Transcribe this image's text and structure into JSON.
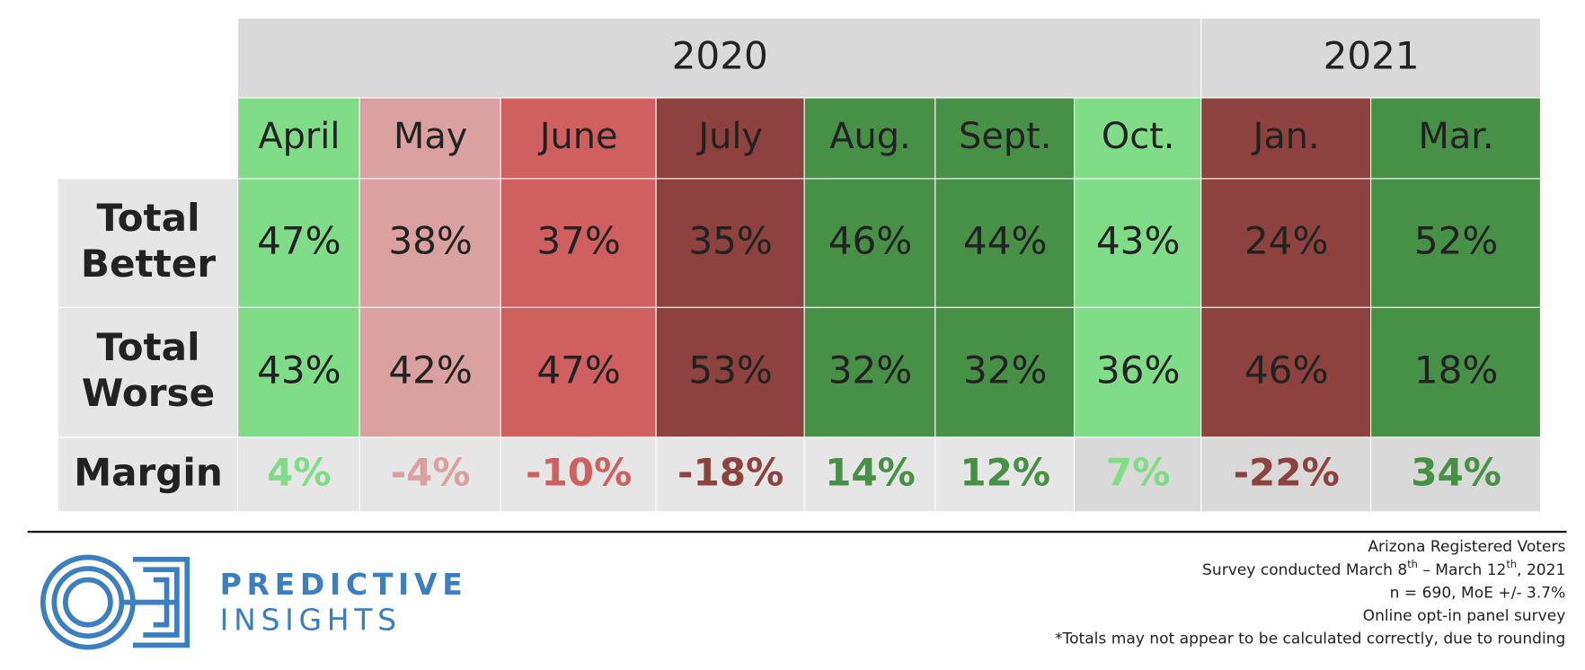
{
  "table": {
    "years": [
      {
        "year": "2020",
        "columns": [
          {
            "month": "April",
            "better": "47%",
            "worse": "43%",
            "margin": "4%",
            "color": "#80dc86"
          },
          {
            "month": "May",
            "better": "38%",
            "worse": "42%",
            "margin": "-4%",
            "color": "#dba0a0"
          },
          {
            "month": "June",
            "better": "37%",
            "worse": "47%",
            "margin": "-10%",
            "color": "#d06060"
          },
          {
            "month": "July",
            "better": "35%",
            "worse": "53%",
            "margin": "-18%",
            "color": "#8e4240"
          },
          {
            "month": "Aug.",
            "better": "46%",
            "worse": "32%",
            "margin": "14%",
            "color": "#469146"
          },
          {
            "month": "Sept.",
            "better": "44%",
            "worse": "32%",
            "margin": "12%",
            "color": "#469146"
          },
          {
            "month": "Oct.",
            "better": "43%",
            "worse": "36%",
            "margin": "7%",
            "color": "#80dc86"
          }
        ]
      },
      {
        "year": "2021",
        "columns": [
          {
            "month": "Jan.",
            "better": "24%",
            "worse": "46%",
            "margin": "-22%",
            "color": "#8e4240"
          },
          {
            "month": "Mar.",
            "better": "52%",
            "worse": "18%",
            "margin": "34%",
            "color": "#469146"
          }
        ]
      }
    ],
    "row_labels": {
      "better": [
        "Total",
        "Better"
      ],
      "worse": [
        "Total",
        "Worse"
      ],
      "margin": [
        "Margin"
      ]
    }
  },
  "footer": {
    "logo": {
      "line1": "PREDICTIVE",
      "line2": "INSIGHTS"
    },
    "notes": [
      [
        "Arizona Registered Voters"
      ],
      [
        "Survey conducted March 8",
        "th",
        " – March 12",
        "th",
        ", 2021"
      ],
      [
        "n = 690, MoE +/- 3.7%"
      ],
      [
        "Online opt-in panel survey"
      ],
      [
        "*Totals may not appear to be calculated correctly, due to rounding"
      ]
    ]
  }
}
